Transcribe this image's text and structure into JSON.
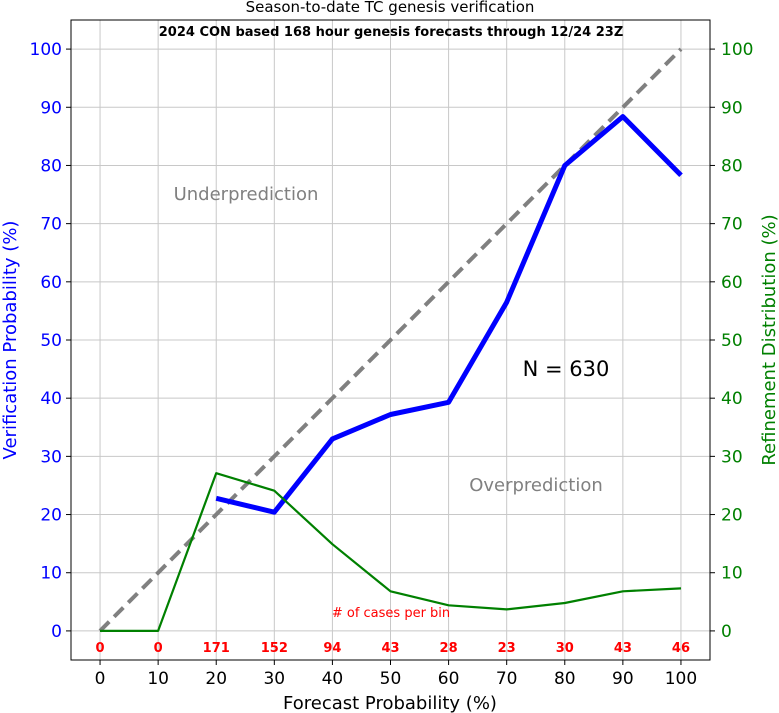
{
  "chart_data": {
    "type": "line",
    "title": "Season-to-date TC genesis verification",
    "subtitle": "2024 CON based 168 hour genesis forecasts through 12/24 23Z",
    "xlabel": "Forecast Probability (%)",
    "ylabel_left": "Verification Probability (%)",
    "ylabel_right": "Refinement Distribution (%)",
    "xlim": [
      -5,
      105
    ],
    "ylim": [
      -5,
      105
    ],
    "x_ticks": [
      0,
      10,
      20,
      30,
      40,
      50,
      60,
      70,
      80,
      90,
      100
    ],
    "y_ticks": [
      0,
      10,
      20,
      30,
      40,
      50,
      60,
      70,
      80,
      90,
      100
    ],
    "grid": true,
    "series": [
      {
        "x": [
          0,
          100
        ],
        "values": [
          0,
          100
        ],
        "color": "#808080",
        "style": "dashed"
      },
      {
        "x": [
          20,
          30,
          40,
          50,
          60,
          70,
          80,
          90,
          100
        ],
        "values": [
          22.8,
          20.4,
          33.0,
          37.2,
          39.3,
          56.5,
          80.0,
          88.4,
          78.3
        ],
        "color": "#0000ff",
        "axis": "left"
      },
      {
        "x": [
          0,
          10,
          20,
          30,
          40,
          50,
          60,
          70,
          80,
          90,
          100
        ],
        "values": [
          0,
          0,
          27.1,
          24.1,
          14.9,
          6.8,
          4.4,
          3.7,
          4.8,
          6.8,
          7.3
        ],
        "color": "#008000",
        "axis": "right"
      }
    ],
    "annotations": {
      "underprediction": "Underprediction",
      "overprediction": "Overprediction",
      "n_label": "N = 630",
      "cases_label": "# of cases per bin"
    },
    "cases_per_bin": {
      "x": [
        0,
        10,
        20,
        30,
        40,
        50,
        60,
        70,
        80,
        90,
        100
      ],
      "counts": [
        "0",
        "0",
        "171",
        "152",
        "94",
        "43",
        "28",
        "23",
        "30",
        "43",
        "46"
      ]
    },
    "colors": {
      "left_axis": "#0000ff",
      "right_axis": "#008000",
      "annotation_gray": "#808080",
      "cases": "#ff0000"
    }
  }
}
